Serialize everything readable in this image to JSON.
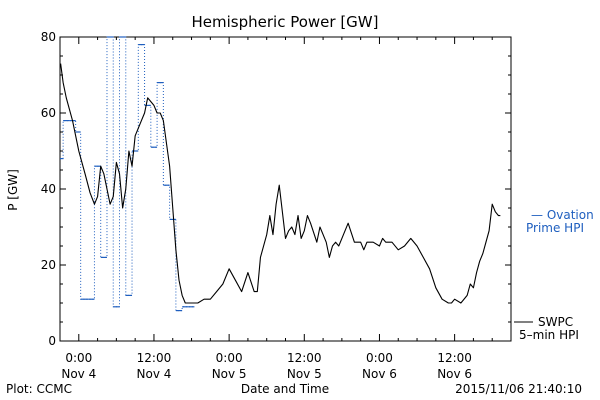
{
  "chart_data": {
    "type": "line",
    "title": "Hemispheric Power [GW]",
    "xlabel": "Date and Time",
    "ylabel": "P [GW]",
    "ylim": [
      0,
      80
    ],
    "yticks": [
      0,
      20,
      40,
      60,
      80
    ],
    "xlim_hours": [
      -3,
      69
    ],
    "xticks": [
      {
        "hour": 0,
        "time": "0:00",
        "date": "Nov 4"
      },
      {
        "hour": 12,
        "time": "12:00",
        "date": "Nov 4"
      },
      {
        "hour": 24,
        "time": "0:00",
        "date": "Nov 5"
      },
      {
        "hour": 36,
        "time": "12:00",
        "date": "Nov 5"
      },
      {
        "hour": 48,
        "time": "0:00",
        "date": "Nov 6"
      },
      {
        "hour": 60,
        "time": "12:00",
        "date": "Nov 6"
      }
    ],
    "series": [
      {
        "name": "SWPC 5-min HPI",
        "style": "solid",
        "color": "#000000",
        "x": [
          -2.9,
          -2.5,
          -2.0,
          -1.0,
          0,
          1.0,
          1.8,
          2.5,
          3.0,
          3.5,
          4.0,
          4.5,
          5.0,
          5.5,
          6.0,
          6.5,
          7.0,
          7.5,
          8.0,
          8.5,
          9.0,
          9.5,
          10.0,
          10.5,
          11.0,
          11.5,
          12.0,
          12.5,
          13.0,
          13.5,
          14.0,
          14.5,
          15.0,
          15.5,
          16.0,
          16.5,
          17.0,
          17.5,
          18.0,
          18.5,
          19.0,
          20.0,
          21.0,
          22.0,
          23.0,
          24.0,
          25.0,
          26.0,
          27.0,
          28.0,
          28.5,
          29.0,
          30.0,
          30.5,
          31.0,
          31.5,
          32.0,
          33.0,
          33.5,
          34.0,
          34.5,
          35.0,
          35.5,
          36.0,
          36.5,
          37.0,
          38.0,
          38.5,
          39.0,
          39.5,
          40.0,
          40.5,
          41.0,
          41.5,
          42.0,
          43.0,
          44.0,
          45.0,
          45.5,
          46.0,
          47.0,
          48.0,
          48.5,
          49.0,
          50.0,
          51.0,
          52.0,
          53.0,
          54.0,
          55.0,
          56.0,
          57.0,
          58.0,
          59.0,
          59.5,
          60.0,
          61.0,
          62.0,
          62.5,
          63.0,
          63.5,
          64.0,
          64.5,
          65.0,
          65.5,
          66.0,
          66.5,
          67.0,
          67.3
        ],
        "y": [
          73,
          68,
          64,
          58,
          50,
          44,
          39,
          36,
          38,
          46,
          44,
          40,
          36,
          38,
          47,
          44,
          35,
          40,
          50,
          46,
          54,
          56,
          58,
          60,
          64,
          63,
          62,
          60,
          60,
          58,
          52,
          46,
          35,
          24,
          16,
          12,
          10,
          10,
          10,
          10,
          10,
          11,
          11,
          13,
          15,
          19,
          16,
          13,
          18,
          13,
          13,
          22,
          28,
          33,
          28,
          36,
          41,
          27,
          29,
          30,
          28,
          33,
          27,
          29,
          33,
          31,
          26,
          30,
          28,
          26,
          22,
          25,
          26,
          25,
          27,
          31,
          26,
          26,
          24,
          26,
          26,
          25,
          27,
          26,
          26,
          24,
          25,
          27,
          25,
          22,
          19,
          14,
          11,
          10,
          10,
          11,
          10,
          12,
          15,
          14,
          18,
          21,
          23,
          26,
          29,
          36,
          34,
          33,
          33
        ]
      },
      {
        "name": "Ovation Prime HPI",
        "style": "dotted-step",
        "color": "#1f5fbf",
        "x": [
          -3,
          -2.5,
          -1.5,
          -0.5,
          0.3,
          1.5,
          2.5,
          3.5,
          4.5,
          5.5,
          6.5,
          7.5,
          8.5,
          9.5,
          10.5,
          11.5,
          12.5,
          13.5,
          14.5,
          15.5,
          16.5,
          17.5
        ],
        "y": [
          48,
          58,
          58,
          55,
          11,
          11,
          46,
          22,
          80,
          9,
          80,
          12,
          50,
          78,
          62,
          51,
          68,
          41,
          32,
          8,
          9,
          9
        ]
      }
    ],
    "legend": [
      {
        "text": "Ovation",
        "prefix": "—"
      },
      {
        "text": "Prime HPI",
        "prefix": ""
      },
      {
        "text": "SWPC",
        "prefix": ""
      },
      {
        "text": "5–min HPI",
        "prefix": ""
      }
    ],
    "legend_placement": "right",
    "grid": false
  },
  "footer": {
    "plot_credit": "Plot: CCMC",
    "timestamp": "2015/11/06 21:40:10"
  },
  "colors": {
    "ovation": "#1f5fbf",
    "swpc": "#000000"
  }
}
